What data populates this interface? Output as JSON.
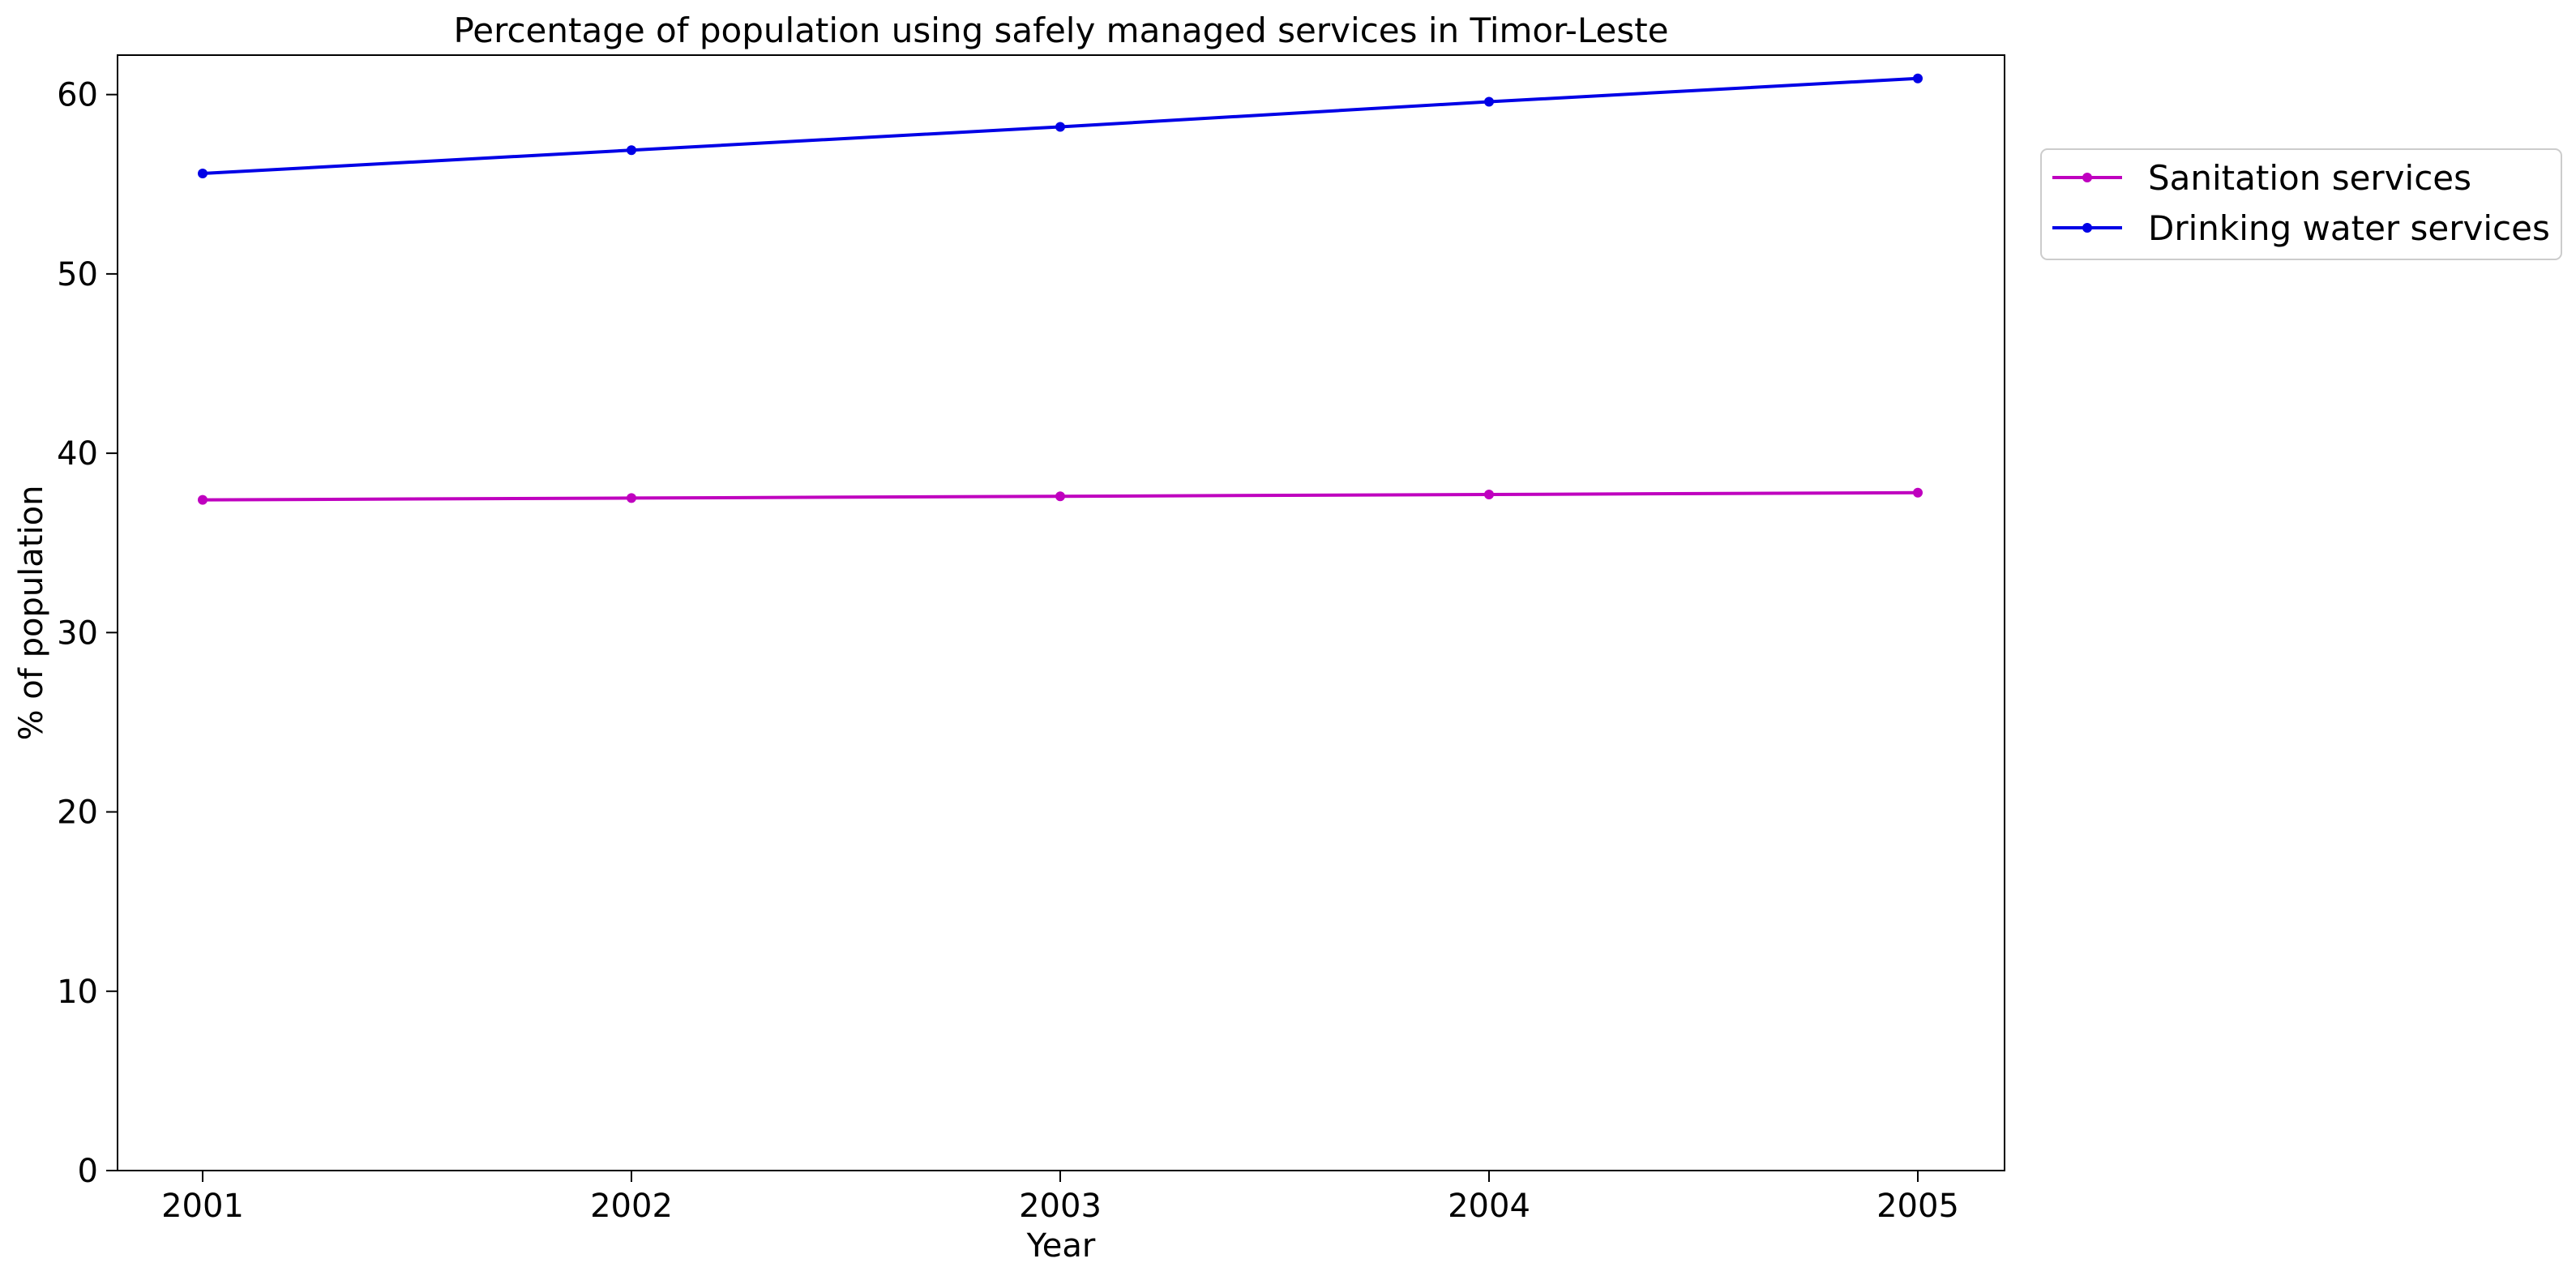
{
  "chart_data": {
    "type": "line",
    "title": "Percentage of population using safely managed services in Timor-Leste",
    "xlabel": "Year",
    "ylabel": "% of population",
    "x": [
      "2001",
      "2002",
      "2003",
      "2004",
      "2005"
    ],
    "ylim": [
      0,
      62.2
    ],
    "yticks": [
      0,
      10,
      20,
      30,
      40,
      50,
      60
    ],
    "grid": false,
    "legend_position": "outside-right-top",
    "series": [
      {
        "name": "Sanitation services",
        "color": "#bf00bf",
        "values": [
          37.4,
          37.5,
          37.6,
          37.7,
          37.8
        ]
      },
      {
        "name": "Drinking water services",
        "color": "#0000e6",
        "values": [
          55.6,
          56.9,
          58.2,
          59.6,
          60.9
        ]
      }
    ]
  }
}
